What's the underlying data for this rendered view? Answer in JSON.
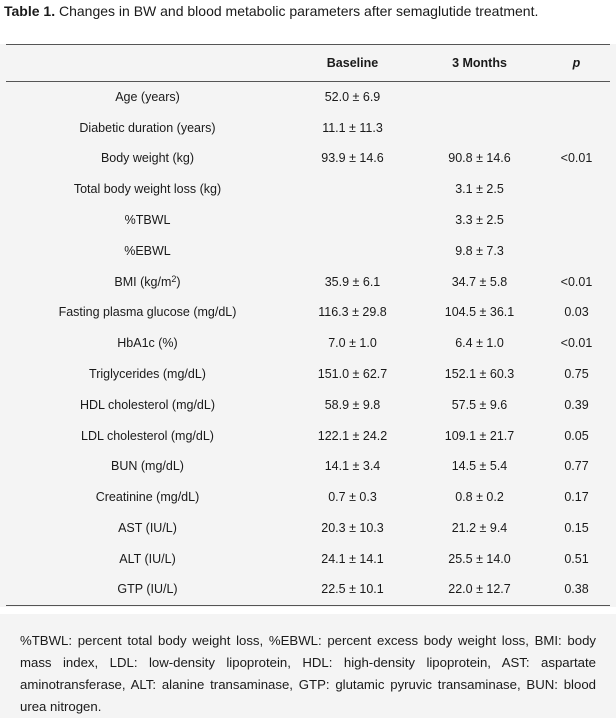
{
  "caption": {
    "label": "Table 1.",
    "text": "Changes in BW and blood metabolic parameters after semaglutide treatment."
  },
  "table": {
    "headers": [
      "",
      "Baseline",
      "3 Months",
      "p"
    ],
    "rows": [
      {
        "label": "Age (years)",
        "baseline": "52.0 ± 6.9",
        "months3": "",
        "p": ""
      },
      {
        "label": "Diabetic duration (years)",
        "baseline": "11.1 ± 11.3",
        "months3": "",
        "p": ""
      },
      {
        "label": "Body weight (kg)",
        "baseline": "93.9 ± 14.6",
        "months3": "90.8 ± 14.6",
        "p": "<0.01"
      },
      {
        "label": "Total body weight loss (kg)",
        "baseline": "",
        "months3": "3.1 ± 2.5",
        "p": ""
      },
      {
        "label": "%TBWL",
        "baseline": "",
        "months3": "3.3 ± 2.5",
        "p": ""
      },
      {
        "label": "%EBWL",
        "baseline": "",
        "months3": "9.8 ± 7.3",
        "p": ""
      },
      {
        "label": "BMI (kg/m",
        "label_sup": "2",
        "label_tail": ")",
        "baseline": "35.9 ± 6.1",
        "months3": "34.7 ± 5.8",
        "p": "<0.01"
      },
      {
        "label": "Fasting plasma glucose (mg/dL)",
        "baseline": "116.3 ± 29.8",
        "months3": "104.5 ± 36.1",
        "p": "0.03"
      },
      {
        "label": "HbA1c (%)",
        "baseline": "7.0 ± 1.0",
        "months3": "6.4 ± 1.0",
        "p": "<0.01"
      },
      {
        "label": "Triglycerides (mg/dL)",
        "baseline": "151.0 ± 62.7",
        "months3": "152.1 ± 60.3",
        "p": "0.75"
      },
      {
        "label": "HDL cholesterol (mg/dL)",
        "baseline": "58.9 ± 9.8",
        "months3": "57.5 ± 9.6",
        "p": "0.39"
      },
      {
        "label": "LDL cholesterol (mg/dL)",
        "baseline": "122.1 ± 24.2",
        "months3": "109.1 ± 21.7",
        "p": "0.05"
      },
      {
        "label": "BUN (mg/dL)",
        "baseline": "14.1 ± 3.4",
        "months3": "14.5 ± 5.4",
        "p": "0.77"
      },
      {
        "label": "Creatinine (mg/dL)",
        "baseline": "0.7 ± 0.3",
        "months3": "0.8 ± 0.2",
        "p": "0.17"
      },
      {
        "label": "AST (IU/L)",
        "baseline": "20.3 ± 10.3",
        "months3": "21.2 ± 9.4",
        "p": "0.15"
      },
      {
        "label": "ALT (IU/L)",
        "baseline": "24.1 ± 14.1",
        "months3": "25.5 ± 14.0",
        "p": "0.51"
      },
      {
        "label": "GTP (IU/L)",
        "baseline": "22.5 ± 10.1",
        "months3": "22.0 ± 12.7",
        "p": "0.38"
      }
    ]
  },
  "footnote": "%TBWL: percent total body weight loss, %EBWL: percent excess body weight loss, BMI: body mass index, LDL: low-density lipoprotein, HDL: high-density lipoprotein, AST: aspartate aminotransferase, ALT: alanine transaminase, GTP: glutamic pyruvic transaminase, BUN: blood urea nitrogen."
}
